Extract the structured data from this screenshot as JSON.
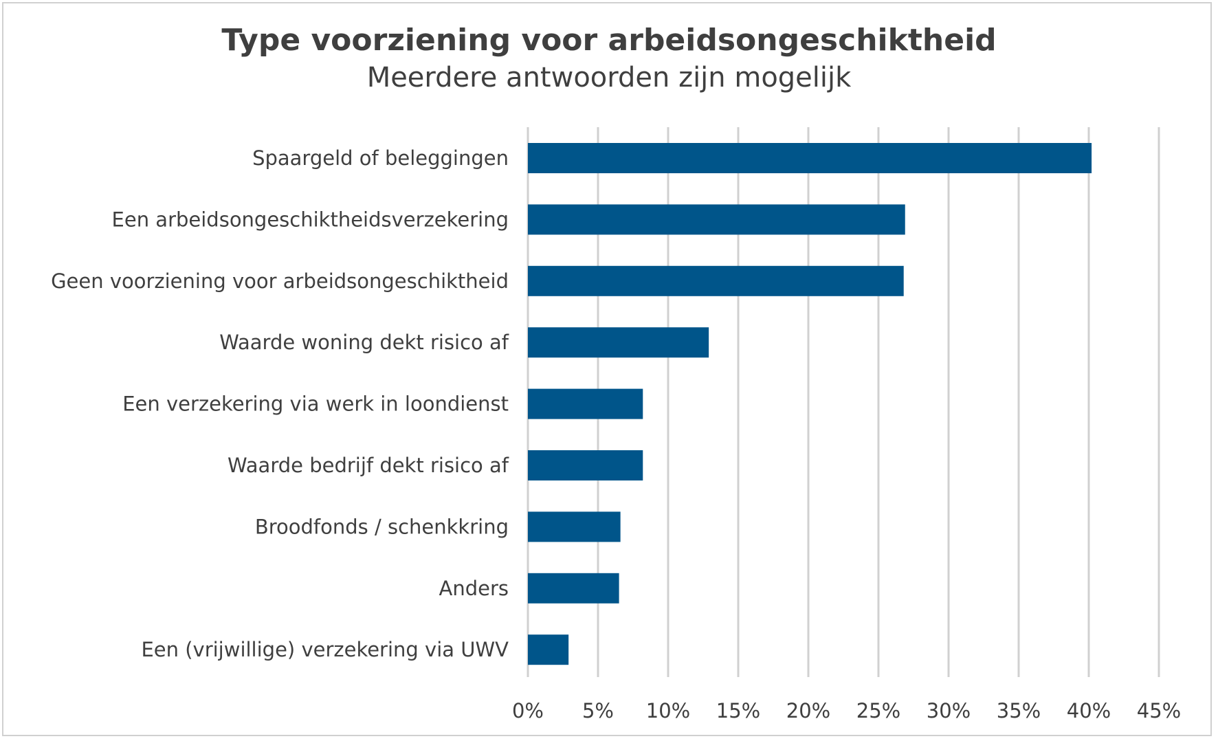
{
  "chart_data": {
    "type": "bar",
    "orientation": "horizontal",
    "title": "Type voorziening voor arbeidsongeschiktheid",
    "subtitle": "Meerdere antwoorden zijn mogelijk",
    "categories": [
      "Spaargeld of beleggingen",
      "Een arbeidsongeschiktheidsverzekering",
      "Geen voorziening voor arbeidsongeschiktheid",
      "Waarde woning dekt risico af",
      "Een verzekering via werk in loondienst",
      "Waarde bedrijf dekt risico af",
      "Broodfonds / schenkkring",
      "Anders",
      "Een (vrijwillige) verzekering via UWV"
    ],
    "values": [
      40.2,
      26.9,
      26.8,
      12.9,
      8.2,
      8.2,
      6.6,
      6.5,
      2.9
    ],
    "xlim": [
      0,
      45
    ],
    "xticks": [
      0,
      5,
      10,
      15,
      20,
      25,
      30,
      35,
      40,
      45
    ],
    "xtick_labels": [
      "0%",
      "5%",
      "10%",
      "15%",
      "20%",
      "25%",
      "30%",
      "35%",
      "40%",
      "45%"
    ],
    "grid": "vertical",
    "legend": "none",
    "bar_color": "#00558a"
  }
}
